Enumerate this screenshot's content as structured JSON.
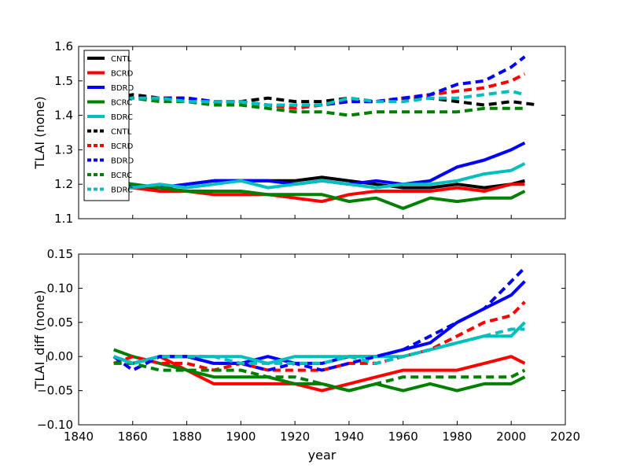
{
  "chart_data": [
    {
      "type": "line",
      "xlabel": "",
      "ylabel": "TLAI (none)",
      "xlim": [
        1840,
        2020
      ],
      "ylim": [
        1.1,
        1.6
      ],
      "xticks": [
        "1840",
        "1860",
        "1880",
        "1900",
        "1920",
        "1940",
        "1960",
        "1980",
        "2000",
        "2020"
      ],
      "yticks": [
        "1.1",
        "1.2",
        "1.3",
        "1.4",
        "1.5",
        "1.6"
      ],
      "legend_position": "top-left",
      "legend": [
        "CNTL",
        "BCRD",
        "BDRD",
        "BCRC",
        "BDRC",
        "CNTL",
        "BCRD",
        "BDRD",
        "BCRC",
        "BDRC"
      ],
      "series": [
        {
          "name": "CNTL",
          "color": "#000000",
          "style": "solid",
          "x": [
            1853,
            1860,
            1870,
            1880,
            1890,
            1900,
            1910,
            1920,
            1930,
            1940,
            1950,
            1960,
            1970,
            1980,
            1990,
            2000,
            2005
          ],
          "y": [
            1.2,
            1.19,
            1.19,
            1.2,
            1.21,
            1.21,
            1.21,
            1.21,
            1.22,
            1.21,
            1.2,
            1.19,
            1.19,
            1.2,
            1.19,
            1.2,
            1.21
          ]
        },
        {
          "name": "BCRD",
          "color": "#ff0000",
          "style": "solid",
          "x": [
            1853,
            1860,
            1870,
            1880,
            1890,
            1900,
            1910,
            1920,
            1930,
            1940,
            1950,
            1960,
            1970,
            1980,
            1990,
            2000,
            2005
          ],
          "y": [
            1.19,
            1.19,
            1.18,
            1.18,
            1.17,
            1.17,
            1.17,
            1.16,
            1.15,
            1.17,
            1.18,
            1.18,
            1.18,
            1.19,
            1.18,
            1.2,
            1.2
          ]
        },
        {
          "name": "BDRD",
          "color": "#0000ff",
          "style": "solid",
          "x": [
            1853,
            1860,
            1870,
            1880,
            1890,
            1900,
            1910,
            1920,
            1930,
            1940,
            1950,
            1960,
            1970,
            1980,
            1990,
            2000,
            2005
          ],
          "y": [
            1.2,
            1.2,
            1.19,
            1.2,
            1.21,
            1.21,
            1.21,
            1.2,
            1.21,
            1.2,
            1.21,
            1.2,
            1.21,
            1.25,
            1.27,
            1.3,
            1.32
          ]
        },
        {
          "name": "BCRC",
          "color": "#008000",
          "style": "solid",
          "x": [
            1853,
            1860,
            1870,
            1880,
            1890,
            1900,
            1910,
            1920,
            1930,
            1940,
            1950,
            1960,
            1970,
            1980,
            1990,
            2000,
            2005
          ],
          "y": [
            1.21,
            1.2,
            1.19,
            1.18,
            1.18,
            1.18,
            1.17,
            1.17,
            1.17,
            1.15,
            1.16,
            1.13,
            1.16,
            1.15,
            1.16,
            1.16,
            1.18
          ]
        },
        {
          "name": "BDRC",
          "color": "#00bfbf",
          "style": "solid",
          "x": [
            1853,
            1860,
            1870,
            1880,
            1890,
            1900,
            1910,
            1920,
            1930,
            1940,
            1950,
            1960,
            1970,
            1980,
            1990,
            2000,
            2005
          ],
          "y": [
            1.19,
            1.19,
            1.2,
            1.19,
            1.2,
            1.21,
            1.19,
            1.2,
            1.21,
            1.2,
            1.19,
            1.2,
            1.2,
            1.21,
            1.23,
            1.24,
            1.26
          ]
        },
        {
          "name": "CNTL",
          "color": "#000000",
          "style": "dashed",
          "x": [
            1853,
            1860,
            1870,
            1880,
            1890,
            1900,
            1910,
            1920,
            1930,
            1940,
            1950,
            1960,
            1970,
            1980,
            1990,
            2000,
            2010
          ],
          "y": [
            1.45,
            1.46,
            1.45,
            1.45,
            1.44,
            1.44,
            1.45,
            1.44,
            1.44,
            1.45,
            1.44,
            1.45,
            1.45,
            1.44,
            1.43,
            1.44,
            1.43
          ]
        },
        {
          "name": "BCRD",
          "color": "#ff0000",
          "style": "dashed",
          "x": [
            1853,
            1860,
            1870,
            1880,
            1890,
            1900,
            1910,
            1920,
            1930,
            1940,
            1950,
            1960,
            1970,
            1980,
            1990,
            2000,
            2005
          ],
          "y": [
            1.44,
            1.45,
            1.45,
            1.45,
            1.44,
            1.44,
            1.43,
            1.42,
            1.43,
            1.44,
            1.44,
            1.45,
            1.46,
            1.47,
            1.48,
            1.5,
            1.52
          ]
        },
        {
          "name": "BDRD",
          "color": "#0000ff",
          "style": "dashed",
          "x": [
            1853,
            1860,
            1870,
            1880,
            1890,
            1900,
            1910,
            1920,
            1930,
            1940,
            1950,
            1960,
            1970,
            1980,
            1990,
            2000,
            2005
          ],
          "y": [
            1.45,
            1.45,
            1.45,
            1.45,
            1.44,
            1.44,
            1.43,
            1.43,
            1.43,
            1.44,
            1.44,
            1.45,
            1.46,
            1.49,
            1.5,
            1.54,
            1.57
          ]
        },
        {
          "name": "BCRC",
          "color": "#008000",
          "style": "dashed",
          "x": [
            1853,
            1860,
            1870,
            1880,
            1890,
            1900,
            1910,
            1920,
            1930,
            1940,
            1950,
            1960,
            1970,
            1980,
            1990,
            2000,
            2005
          ],
          "y": [
            1.45,
            1.45,
            1.44,
            1.44,
            1.43,
            1.43,
            1.42,
            1.41,
            1.41,
            1.4,
            1.41,
            1.41,
            1.41,
            1.41,
            1.42,
            1.42,
            1.42
          ]
        },
        {
          "name": "BDRC",
          "color": "#00bfbf",
          "style": "dashed",
          "x": [
            1853,
            1860,
            1870,
            1880,
            1890,
            1900,
            1910,
            1920,
            1930,
            1940,
            1950,
            1960,
            1970,
            1980,
            1990,
            2000,
            2005
          ],
          "y": [
            1.44,
            1.45,
            1.45,
            1.44,
            1.44,
            1.44,
            1.43,
            1.43,
            1.43,
            1.45,
            1.44,
            1.44,
            1.45,
            1.45,
            1.46,
            1.47,
            1.46
          ]
        }
      ]
    },
    {
      "type": "line",
      "xlabel": "year",
      "ylabel": "TLAI_diff (none)",
      "xlim": [
        1840,
        2020
      ],
      "ylim": [
        -0.1,
        0.15
      ],
      "xticks": [
        "1840",
        "1860",
        "1880",
        "1900",
        "1920",
        "1940",
        "1960",
        "1980",
        "2000",
        "2020"
      ],
      "yticks": [
        "−0.10",
        "−0.05",
        "0.00",
        "0.05",
        "0.10",
        "0.15"
      ],
      "series": [
        {
          "name": "BCRD",
          "color": "#ff0000",
          "style": "solid",
          "x": [
            1853,
            1860,
            1870,
            1880,
            1890,
            1900,
            1910,
            1920,
            1930,
            1940,
            1950,
            1960,
            1970,
            1980,
            1990,
            2000,
            2005
          ],
          "y": [
            0.0,
            -0.01,
            0.0,
            -0.02,
            -0.04,
            -0.04,
            -0.04,
            -0.04,
            -0.05,
            -0.04,
            -0.03,
            -0.02,
            -0.02,
            -0.02,
            -0.01,
            0.0,
            -0.01
          ]
        },
        {
          "name": "BDRD",
          "color": "#0000ff",
          "style": "solid",
          "x": [
            1853,
            1860,
            1870,
            1880,
            1890,
            1900,
            1910,
            1920,
            1930,
            1940,
            1950,
            1960,
            1970,
            1980,
            1990,
            2000,
            2005
          ],
          "y": [
            0.0,
            -0.01,
            0.0,
            0.0,
            -0.01,
            -0.01,
            0.0,
            -0.01,
            -0.01,
            0.0,
            0.0,
            0.01,
            0.02,
            0.05,
            0.07,
            0.09,
            0.11
          ]
        },
        {
          "name": "BCRC",
          "color": "#008000",
          "style": "solid",
          "x": [
            1853,
            1860,
            1870,
            1880,
            1890,
            1900,
            1910,
            1920,
            1930,
            1940,
            1950,
            1960,
            1970,
            1980,
            1990,
            2000,
            2005
          ],
          "y": [
            0.01,
            0.0,
            -0.01,
            -0.02,
            -0.03,
            -0.03,
            -0.03,
            -0.04,
            -0.04,
            -0.05,
            -0.04,
            -0.05,
            -0.04,
            -0.05,
            -0.04,
            -0.04,
            -0.03
          ]
        },
        {
          "name": "BDRC",
          "color": "#00bfbf",
          "style": "solid",
          "x": [
            1853,
            1860,
            1870,
            1880,
            1890,
            1900,
            1910,
            1920,
            1930,
            1940,
            1950,
            1960,
            1970,
            1980,
            1990,
            2000,
            2005
          ],
          "y": [
            0.0,
            -0.01,
            0.0,
            0.0,
            0.0,
            0.0,
            -0.01,
            0.0,
            0.0,
            0.0,
            0.0,
            0.0,
            0.01,
            0.02,
            0.03,
            0.03,
            0.05
          ]
        },
        {
          "name": "BCRD",
          "color": "#ff0000",
          "style": "dashed",
          "x": [
            1853,
            1860,
            1870,
            1880,
            1890,
            1900,
            1910,
            1920,
            1930,
            1940,
            1950,
            1960,
            1970,
            1980,
            1990,
            2000,
            2005
          ],
          "y": [
            -0.01,
            0.0,
            -0.01,
            -0.01,
            -0.02,
            -0.01,
            -0.02,
            -0.02,
            -0.02,
            -0.01,
            -0.01,
            0.0,
            0.01,
            0.03,
            0.05,
            0.06,
            0.08
          ]
        },
        {
          "name": "BDRD",
          "color": "#0000ff",
          "style": "dashed",
          "x": [
            1853,
            1860,
            1870,
            1880,
            1890,
            1900,
            1910,
            1920,
            1930,
            1940,
            1950,
            1960,
            1970,
            1980,
            1990,
            2000,
            2005
          ],
          "y": [
            0.0,
            -0.02,
            0.0,
            0.0,
            -0.01,
            -0.01,
            -0.02,
            -0.01,
            -0.02,
            -0.01,
            0.0,
            0.01,
            0.03,
            0.05,
            0.07,
            0.11,
            0.13
          ]
        },
        {
          "name": "BCRC",
          "color": "#008000",
          "style": "dashed",
          "x": [
            1853,
            1860,
            1870,
            1880,
            1890,
            1900,
            1910,
            1920,
            1930,
            1940,
            1950,
            1960,
            1970,
            1980,
            1990,
            2000,
            2005
          ],
          "y": [
            -0.01,
            -0.01,
            -0.02,
            -0.02,
            -0.02,
            -0.02,
            -0.03,
            -0.03,
            -0.04,
            -0.05,
            -0.04,
            -0.03,
            -0.03,
            -0.03,
            -0.03,
            -0.03,
            -0.02
          ]
        },
        {
          "name": "BDRC",
          "color": "#00bfbf",
          "style": "dashed",
          "x": [
            1853,
            1860,
            1870,
            1880,
            1890,
            1900,
            1910,
            1920,
            1930,
            1940,
            1950,
            1960,
            1970,
            1980,
            1990,
            2000,
            2005
          ],
          "y": [
            0.0,
            -0.01,
            0.0,
            0.0,
            0.0,
            -0.01,
            -0.01,
            -0.01,
            -0.01,
            0.0,
            -0.01,
            0.0,
            0.01,
            0.02,
            0.03,
            0.04,
            0.04
          ]
        }
      ]
    }
  ]
}
